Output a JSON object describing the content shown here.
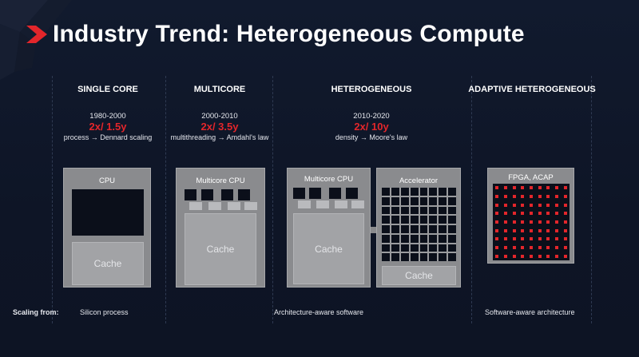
{
  "title": "Industry Trend: Heterogeneous Compute",
  "columns": [
    {
      "heading": "SINGLE CORE",
      "years": "1980-2000",
      "rate": "2x/ 1.5y",
      "law": "process → Dennard scaling"
    },
    {
      "heading": "MULTICORE",
      "years": "2000-2010",
      "rate": "2x/ 3.5y",
      "law": "multithreading → Amdahl's law"
    },
    {
      "heading": "HETEROGENEOUS",
      "years": "2010-2020",
      "rate": "2x/ 10y",
      "law": "density → Moore's law"
    },
    {
      "heading": "ADAPTIVE HETEROGENEOUS"
    }
  ],
  "diagrams": {
    "cpu_label": "CPU",
    "multicore_cpu_label": "Multicore CPU",
    "hetero_cpu_label": "Multicore CPU",
    "accelerator_label": "Accelerator",
    "fpga_label": "FPGA, ACAP",
    "cache_label": "Cache"
  },
  "footer": {
    "label": "Scaling from:",
    "silicon": "Silicon process",
    "arch": "Architecture-aware software",
    "software": "Software-aware architecture"
  },
  "colors": {
    "accent_red": "#e3262b",
    "background": "#0f1628",
    "panel_gray": "#8a8b8e"
  }
}
